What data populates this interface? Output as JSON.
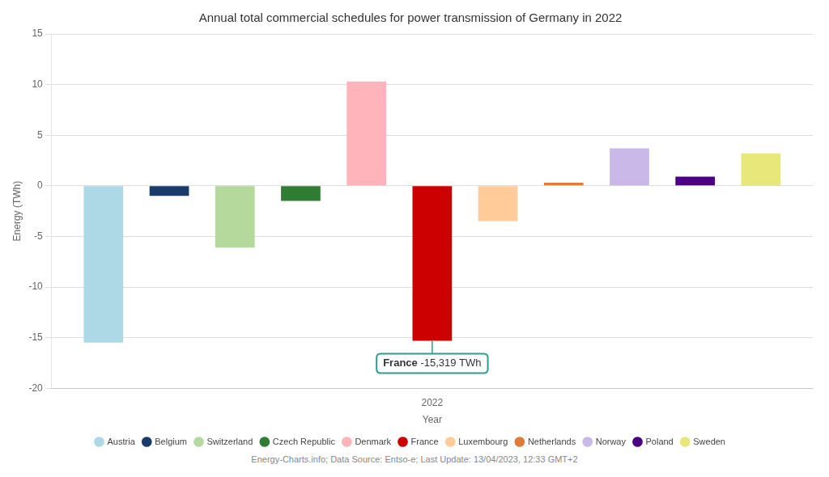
{
  "chart_data": {
    "type": "bar",
    "title": "Annual total commercial schedules for power transmission of Germany in 2022",
    "xlabel": "Year",
    "ylabel": "Energy (TWh)",
    "footer": "Energy-Charts.info; Data Source: Entso-e; Last Update: 13/04/2023, 12:33 GMT+2",
    "categories": [
      "2022"
    ],
    "series": [
      {
        "name": "Austria",
        "color": "#add8e6",
        "values": [
          -15.5
        ]
      },
      {
        "name": "Belgium",
        "color": "#1a3a6b",
        "values": [
          -1.0
        ]
      },
      {
        "name": "Switzerland",
        "color": "#b5d99c",
        "values": [
          -6.1
        ]
      },
      {
        "name": "Czech Republic",
        "color": "#2e7d32",
        "values": [
          -1.5
        ]
      },
      {
        "name": "Denmark",
        "color": "#ffb3ba",
        "values": [
          10.3
        ]
      },
      {
        "name": "France",
        "color": "#cc0000",
        "values": [
          -15.319
        ]
      },
      {
        "name": "Luxembourg",
        "color": "#ffcc99",
        "values": [
          -3.5
        ]
      },
      {
        "name": "Netherlands",
        "color": "#e07b39",
        "values": [
          0.3
        ]
      },
      {
        "name": "Norway",
        "color": "#c9b8e8",
        "values": [
          3.7
        ]
      },
      {
        "name": "Poland",
        "color": "#4b0082",
        "values": [
          0.9
        ]
      },
      {
        "name": "Sweden",
        "color": "#e8e87a",
        "values": [
          3.2
        ]
      }
    ],
    "annotations": [
      {
        "target": "France",
        "text": "-15,319 TWh",
        "color": "#2a9d8f"
      }
    ],
    "ylim": [
      -20,
      15
    ],
    "yticks": [
      -20,
      -15,
      -10,
      -5,
      0,
      5,
      10,
      15
    ],
    "grid": true,
    "legend": "bottom"
  }
}
